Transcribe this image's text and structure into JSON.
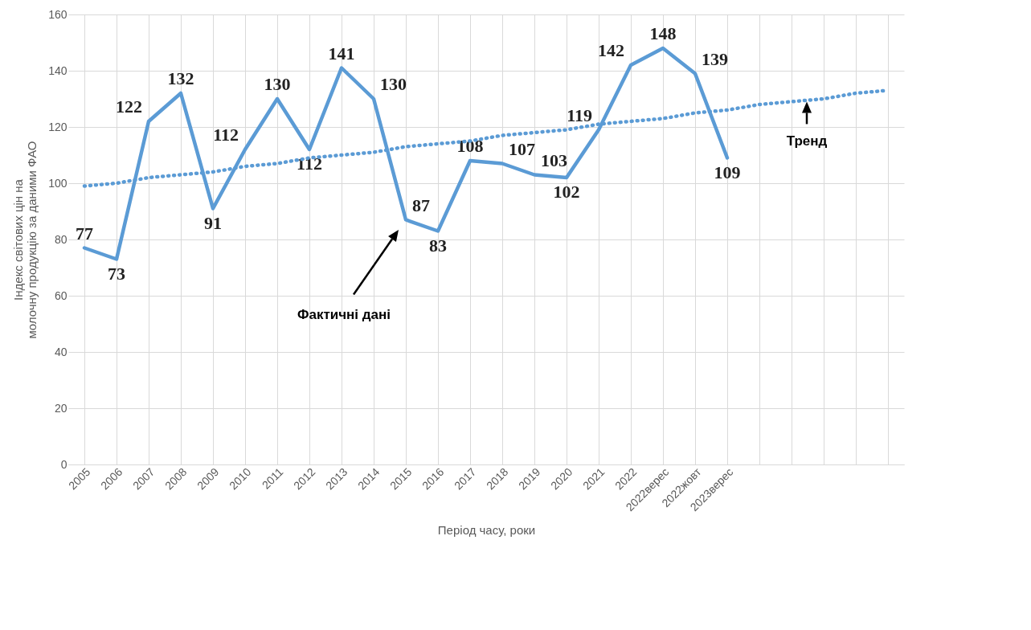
{
  "chart_data": {
    "type": "line",
    "xlabel": "Період часу, роки",
    "ylabel": "Індекс світових  цін на молочну продукцію за даними ФАО",
    "categories": [
      "2005",
      "2006",
      "2007",
      "2008",
      "2009",
      "2010",
      "2011",
      "2012",
      "2013",
      "2014",
      "2015",
      "2016",
      "2017",
      "2018",
      "2019",
      "2020",
      "2021",
      "2022",
      "2022верес",
      "2022жовт",
      "2023верес",
      null,
      null,
      null,
      null,
      null
    ],
    "series": [
      {
        "color": "#5b9bd5",
        "values": [
          77,
          73,
          122,
          132,
          91,
          112,
          130,
          112,
          141,
          130,
          87,
          83,
          108,
          107,
          103,
          102,
          119,
          142,
          148,
          139,
          109,
          null,
          null,
          null,
          null,
          null
        ],
        "value_labels": [
          "77",
          "73",
          "122",
          "132",
          "91",
          "112",
          "130",
          "112",
          "141",
          "130",
          "87",
          "83",
          "108",
          "107",
          "103",
          "102",
          "119",
          "142",
          "148",
          "139",
          "109",
          null,
          null,
          null,
          null,
          null
        ]
      },
      {
        "type": "line",
        "color": "#5b9bd5",
        "line_style": "dotted",
        "values": [
          99,
          100,
          102,
          103,
          104,
          106,
          107,
          109,
          110,
          111,
          113,
          114,
          115,
          117,
          118,
          119,
          121,
          122,
          123,
          125,
          126,
          128,
          129,
          130,
          132,
          133
        ]
      }
    ],
    "ylim": [
      0,
      160
    ],
    "yticks": [
      0,
      20,
      40,
      60,
      80,
      100,
      120,
      140,
      160
    ],
    "grid": true,
    "marker": "none",
    "annotations": [
      "Фактичні дані",
      "Тренд"
    ]
  }
}
